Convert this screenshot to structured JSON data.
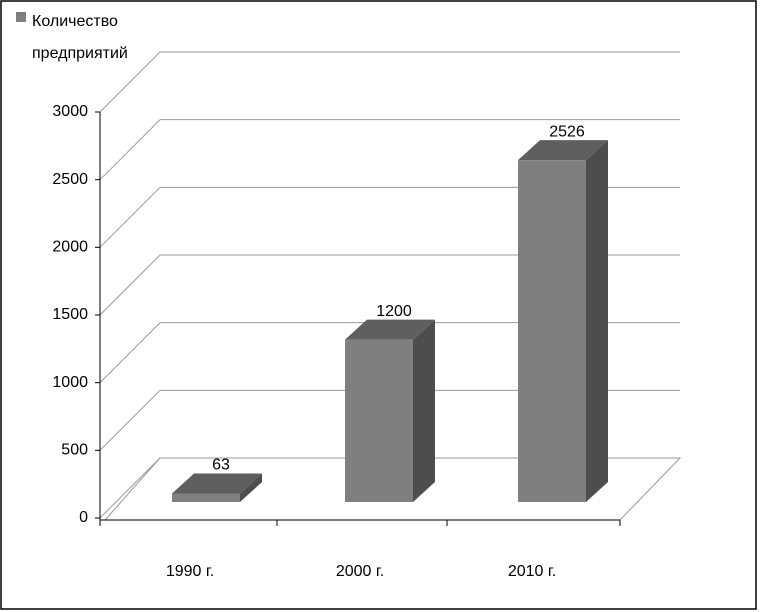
{
  "chart_data": {
    "type": "bar",
    "categories": [
      "1990 г.",
      "2000 г.",
      "2010 г."
    ],
    "series": [
      {
        "name": "Количество предприятий",
        "color": "#7f7f7f",
        "values": [
          63,
          1200,
          2526
        ]
      }
    ],
    "ylim": [
      0,
      3000
    ],
    "yticks": [
      0,
      500,
      1000,
      1500,
      2000,
      2500,
      3000
    ],
    "grid": true,
    "legend": "top-left"
  }
}
